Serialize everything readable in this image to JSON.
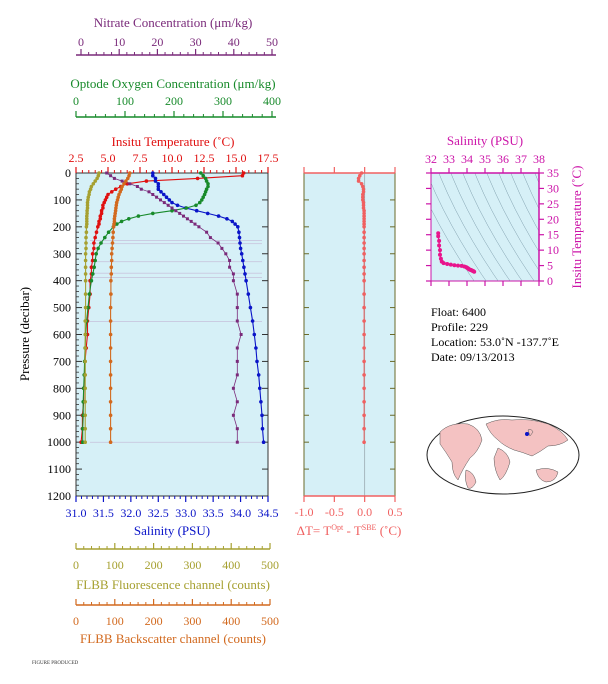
{
  "colors": {
    "panel_bg": "#d6f0f7",
    "nitrate": "#7a2a7a",
    "oxygen": "#178a2a",
    "temperature": "#e01010",
    "salinity": "#0a14c8",
    "fluorescence": "#a6a030",
    "backscatter": "#d2691e",
    "delta_t": "#f06060",
    "ts_panel": "#cc14a8",
    "density_contour": "#6a8a9a",
    "land": "#f4c2c2"
  },
  "main_panel": {
    "ylabel": "Pressure (decibar)",
    "y_ticks": [
      "0",
      "100",
      "200",
      "300",
      "400",
      "500",
      "600",
      "700",
      "800",
      "900",
      "1000",
      "1100",
      "1200"
    ]
  },
  "axes": {
    "nitrate": {
      "label": "Nitrate Concentration (μm/kg)",
      "ticks": [
        "0",
        "10",
        "20",
        "30",
        "40",
        "50"
      ]
    },
    "oxygen": {
      "label": "Optode Oxygen Concentration (μm/kg)",
      "ticks": [
        "0",
        "100",
        "200",
        "300",
        "400"
      ]
    },
    "temperature": {
      "label": "Insitu Temperature (˚C)",
      "ticks": [
        "2.5",
        "5.0",
        "7.5",
        "10.0",
        "12.5",
        "15.0",
        "17.5"
      ]
    },
    "salinity": {
      "label": "Salinity (PSU)",
      "ticks": [
        "31.0",
        "31.5",
        "32.0",
        "32.5",
        "33.0",
        "33.5",
        "34.0",
        "34.5"
      ]
    },
    "fluorescence": {
      "label": "FLBB Fluorescence channel (counts)",
      "ticks": [
        "0",
        "100",
        "200",
        "300",
        "400",
        "500"
      ]
    },
    "backscatter": {
      "label": "FLBB Backscatter channel (counts)",
      "ticks": [
        "0",
        "100",
        "200",
        "300",
        "400",
        "500"
      ]
    }
  },
  "delta_panel": {
    "xlabel_main": "ΔT= T",
    "xlabel_sup1": "Opt",
    "xlabel_mid": " - T",
    "xlabel_sup2": "SBE",
    "xlabel_end": " (˚C)",
    "ticks": [
      "-1.0",
      "-0.5",
      "0.0",
      "0.5"
    ]
  },
  "ts_panel": {
    "xlabel": "Salinity (PSU)",
    "ylabel": "Insitu Temperature (˚C)",
    "x_ticks": [
      "32",
      "33",
      "34",
      "35",
      "36",
      "37",
      "38"
    ],
    "y_ticks": [
      "0",
      "5",
      "10",
      "15",
      "20",
      "25",
      "30",
      "35"
    ]
  },
  "info": {
    "float": "Float:  6400",
    "profile": "Profile:  229",
    "location": "Location:  53.0˚N  -137.7˚E",
    "date": "Date:  09/13/2013"
  },
  "footer_text": "FIGURE PRODUCED",
  "chart_data": [
    {
      "type": "line",
      "title": "",
      "ylabel": "Pressure (decibar)",
      "ylim": [
        1200,
        0
      ],
      "pressure": [
        0,
        10,
        20,
        30,
        40,
        50,
        60,
        70,
        80,
        90,
        100,
        110,
        120,
        130,
        140,
        150,
        160,
        170,
        180,
        190,
        200,
        220,
        240,
        260,
        280,
        300,
        325,
        350,
        375,
        400,
        450,
        500,
        550,
        600,
        650,
        700,
        750,
        800,
        850,
        900,
        950,
        1000
      ],
      "series": [
        {
          "name": "Insitu Temperature (˚C)",
          "xlim": [
            2.5,
            17.5
          ],
          "values": [
            15.6,
            15.5,
            12.0,
            8.0,
            6.5,
            6.0,
            5.6,
            5.3,
            5.0,
            4.9,
            4.8,
            4.7,
            4.6,
            4.6,
            4.5,
            4.5,
            4.4,
            4.4,
            4.3,
            4.3,
            4.2,
            4.1,
            4.0,
            3.9,
            3.9,
            3.8,
            3.8,
            3.7,
            3.7,
            3.6,
            3.6,
            3.5,
            3.4,
            3.4,
            3.3,
            3.2,
            3.2,
            3.1,
            3.1,
            3.0,
            3.0,
            2.9
          ]
        },
        {
          "name": "Salinity (PSU)",
          "xlim": [
            31.0,
            34.5
          ],
          "values": [
            32.4,
            32.4,
            32.45,
            32.45,
            32.5,
            32.5,
            32.5,
            32.55,
            32.6,
            32.65,
            32.7,
            32.75,
            32.85,
            33.0,
            33.2,
            33.4,
            33.6,
            33.75,
            33.85,
            33.9,
            33.95,
            33.97,
            33.98,
            33.99,
            34.0,
            34.02,
            34.04,
            34.06,
            34.08,
            34.1,
            34.14,
            34.18,
            34.22,
            34.25,
            34.28,
            34.3,
            34.33,
            34.35,
            34.37,
            34.39,
            34.4,
            34.42
          ]
        },
        {
          "name": "Optode Oxygen Concentration (μm/kg)",
          "xlim": [
            0,
            400
          ],
          "values": [
            260,
            265,
            270,
            272,
            275,
            275,
            272,
            270,
            268,
            265,
            262,
            258,
            250,
            230,
            200,
            160,
            130,
            110,
            95,
            85,
            78,
            68,
            60,
            52,
            46,
            42,
            40,
            38,
            35,
            32,
            28,
            25,
            22,
            20,
            19,
            18,
            17,
            16,
            15,
            15,
            14,
            14
          ]
        },
        {
          "name": "Nitrate Concentration (μm/kg)",
          "xlim": [
            0,
            50
          ],
          "values": [
            8,
            9,
            10,
            12,
            14,
            16,
            17,
            19,
            20,
            21,
            22,
            23,
            24,
            25,
            26,
            27,
            28,
            29,
            30,
            31,
            32,
            34,
            35,
            37,
            38,
            39,
            40,
            40,
            41,
            41,
            42,
            42,
            42,
            43,
            42,
            42,
            42,
            41,
            42,
            41,
            42,
            42
          ]
        },
        {
          "name": "FLBB Fluorescence channel (counts)",
          "xlim": [
            0,
            500
          ],
          "values": [
            60,
            58,
            55,
            50,
            45,
            40,
            38,
            35,
            34,
            32,
            31,
            30,
            30,
            30,
            29,
            29,
            28,
            28,
            28,
            28,
            27,
            27,
            26,
            26,
            26,
            25,
            25,
            25,
            25,
            25,
            25,
            25,
            24,
            24,
            24,
            24,
            24,
            24,
            24,
            24,
            24,
            24
          ]
        },
        {
          "name": "FLBB Backscatter channel (counts)",
          "xlim": [
            0,
            500
          ],
          "values": [
            140,
            138,
            135,
            130,
            125,
            120,
            118,
            115,
            112,
            110,
            108,
            106,
            105,
            104,
            103,
            102,
            101,
            100,
            100,
            99,
            98,
            97,
            96,
            95,
            94,
            93,
            93,
            92,
            92,
            91,
            91,
            90,
            90,
            90,
            90,
            90,
            90,
            90,
            90,
            90,
            90,
            90
          ]
        }
      ]
    },
    {
      "type": "line",
      "title": "",
      "xlabel": "ΔT= T Opt - T SBE (˚C)",
      "ylim": [
        1200,
        0
      ],
      "xlim": [
        -1.0,
        0.5
      ],
      "pressure": [
        0,
        10,
        20,
        30,
        40,
        50,
        60,
        70,
        80,
        90,
        100,
        110,
        120,
        130,
        140,
        150,
        160,
        170,
        180,
        190,
        200,
        220,
        240,
        260,
        280,
        300,
        325,
        350,
        375,
        400,
        450,
        500,
        550,
        600,
        650,
        700,
        750,
        800,
        850,
        900,
        950,
        1000
      ],
      "values": [
        -0.05,
        -0.08,
        -0.1,
        -0.1,
        -0.05,
        -0.03,
        -0.02,
        -0.02,
        -0.03,
        -0.03,
        -0.03,
        -0.02,
        -0.02,
        -0.02,
        -0.01,
        -0.01,
        -0.01,
        -0.01,
        -0.01,
        -0.01,
        -0.01,
        -0.01,
        -0.01,
        -0.01,
        -0.01,
        -0.01,
        -0.01,
        -0.01,
        -0.01,
        -0.01,
        -0.01,
        -0.01,
        -0.01,
        -0.01,
        -0.01,
        -0.01,
        -0.01,
        -0.01,
        -0.01,
        -0.01,
        -0.01,
        -0.01
      ]
    },
    {
      "type": "scatter",
      "title": "",
      "xlabel": "Salinity (PSU)",
      "ylabel": "Insitu Temperature (˚C)",
      "xlim": [
        32,
        38
      ],
      "ylim": [
        0,
        35
      ],
      "points": [
        [
          32.4,
          15.5
        ],
        [
          32.4,
          14.5
        ],
        [
          32.45,
          13.0
        ],
        [
          32.45,
          11.5
        ],
        [
          32.5,
          10.0
        ],
        [
          32.5,
          8.5
        ],
        [
          32.55,
          7.2
        ],
        [
          32.6,
          6.3
        ],
        [
          32.7,
          5.8
        ],
        [
          32.9,
          5.5
        ],
        [
          33.1,
          5.3
        ],
        [
          33.3,
          5.1
        ],
        [
          33.5,
          5.0
        ],
        [
          33.7,
          4.9
        ],
        [
          33.85,
          4.7
        ],
        [
          33.95,
          4.5
        ],
        [
          34.0,
          4.3
        ],
        [
          34.05,
          4.1
        ],
        [
          34.1,
          3.9
        ],
        [
          34.15,
          3.7
        ],
        [
          34.2,
          3.6
        ],
        [
          34.25,
          3.5
        ],
        [
          34.3,
          3.3
        ],
        [
          34.35,
          3.2
        ],
        [
          34.4,
          3.0
        ]
      ]
    }
  ]
}
